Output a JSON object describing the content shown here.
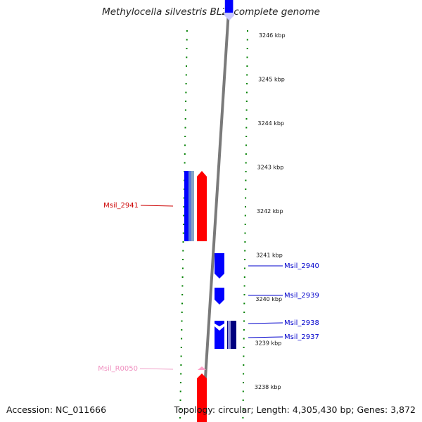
{
  "title": "Methylocella silvestris BL2, complete genome",
  "accession": "Accession: NC_011666",
  "summary": "Topology: circular; Length: 4,305,430 bp; Genes: 3,872",
  "colors": {
    "forward": "#ff0000",
    "reverse": "#0000ff",
    "reverse_dark": "#00007f",
    "rna": "#ff9fc8",
    "backbone": "#808080",
    "ticks": "#008000"
  },
  "ruler": {
    "ticks": [
      {
        "kbp": 3246,
        "label": "3246 kbp"
      },
      {
        "kbp": 3245,
        "label": "3245 kbp"
      },
      {
        "kbp": 3244,
        "label": "3244 kbp"
      },
      {
        "kbp": 3243,
        "label": "3243 kbp"
      },
      {
        "kbp": 3242,
        "label": "3242 kbp"
      },
      {
        "kbp": 3241,
        "label": "3241 kbp"
      },
      {
        "kbp": 3240,
        "label": "3240 kbp"
      },
      {
        "kbp": 3239,
        "label": "3239 kbp"
      },
      {
        "kbp": 3238,
        "label": "3238 kbp"
      }
    ]
  },
  "genes": [
    {
      "name": "Msil_2941",
      "strand": "+",
      "start_kbp": 3241.5,
      "end_kbp": 3243.0,
      "color": "#ff0000"
    },
    {
      "name": "Msil_2940",
      "strand": "-",
      "start_kbp": 3240.5,
      "end_kbp": 3241.05,
      "color": "#0000ff"
    },
    {
      "name": "Msil_2939",
      "strand": "-",
      "start_kbp": 3240.0,
      "end_kbp": 3240.35,
      "color": "#0000ff"
    },
    {
      "name": "Msil_2938",
      "strand": "-",
      "start_kbp": 3239.4,
      "end_kbp": 3239.9,
      "color": "#0000ff"
    },
    {
      "name": "Msil_2937",
      "strand": "-",
      "start_kbp": 3239.4,
      "end_kbp": 3239.9,
      "color": "#00007f"
    },
    {
      "name": "Msil_R0050",
      "strand": "+",
      "start_kbp": 3238.4,
      "end_kbp": 3238.45,
      "color": "#ff9fc8"
    }
  ]
}
